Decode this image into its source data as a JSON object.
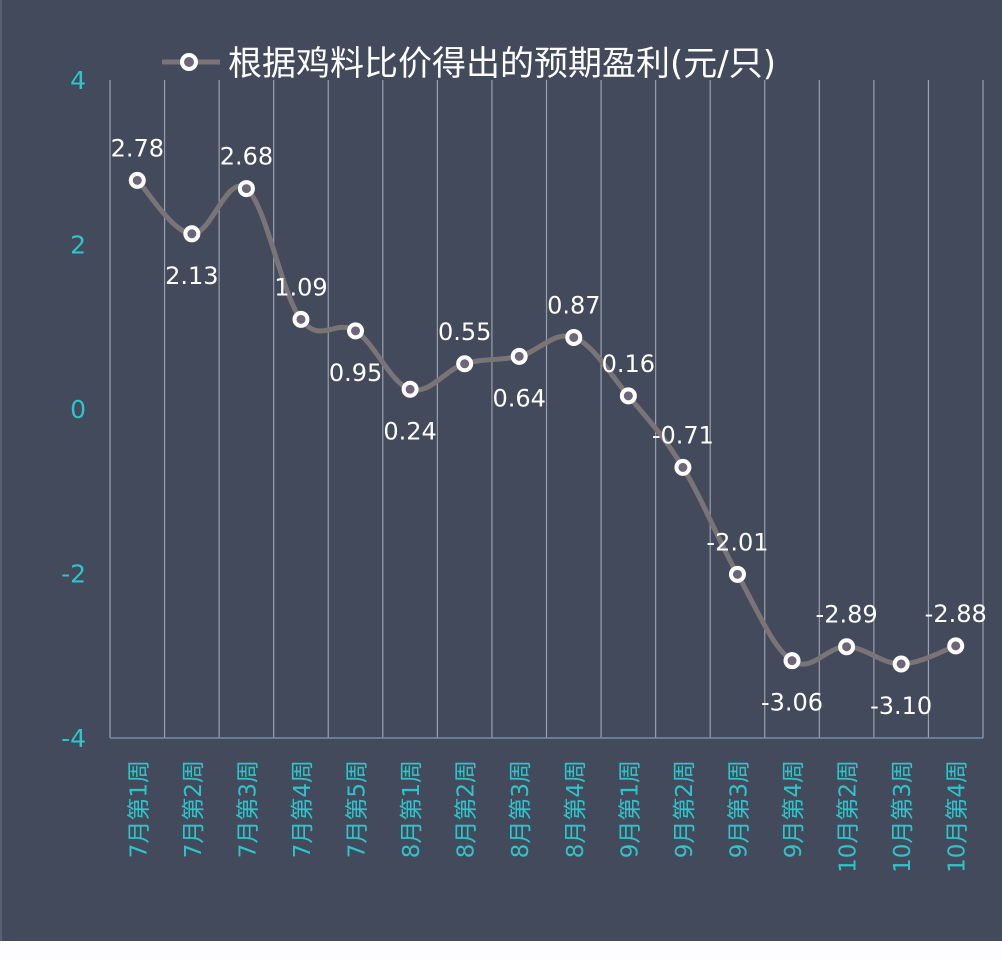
{
  "chart_data": {
    "type": "line",
    "title": "根据鸡料比价得出的预期盈利(元/只)",
    "legend": [
      {
        "name": "根据鸡料比价得出的预期盈利(元/只)",
        "position": "top"
      }
    ],
    "xlabel": "",
    "ylabel": "",
    "ylim": [
      -4,
      4
    ],
    "yticks": [
      "4",
      "2",
      "0",
      "-2",
      "-4"
    ],
    "grid": {
      "vertical": true,
      "horizontal": false
    },
    "smooth": true,
    "categories": [
      "7月第1周",
      "7月第2周",
      "7月第3周",
      "7月第4周",
      "7月第5周",
      "8月第1周",
      "8月第2周",
      "8月第3周",
      "8月第4周",
      "9月第1周",
      "9月第2周",
      "9月第3周",
      "9月第4周",
      "10月第2周",
      "10月第3周",
      "10月第4周"
    ],
    "series": [
      {
        "name": "根据鸡料比价得出的预期盈利(元/只)",
        "values": [
          2.78,
          2.13,
          2.68,
          1.09,
          0.95,
          0.24,
          0.55,
          0.64,
          0.87,
          0.16,
          -0.71,
          -2.01,
          -3.06,
          -2.89,
          -3.1,
          -2.88
        ],
        "labels": [
          "2.78",
          "2.13",
          "2.68",
          "1.09",
          "0.95",
          "0.24",
          "0.55",
          "0.64",
          "0.87",
          "0.16",
          "-0.71",
          "-2.01",
          "-3.06",
          "-2.89",
          "-3.10",
          "-2.88"
        ],
        "label_positions": [
          "above",
          "below",
          "above",
          "above",
          "below",
          "below",
          "above",
          "below",
          "above",
          "above",
          "above",
          "above",
          "below",
          "above",
          "below",
          "above"
        ]
      }
    ],
    "colors": {
      "background": "#434a5c",
      "line": "#7b7477",
      "marker_ring": "#ffffff",
      "marker_fill": "#6e6678",
      "axis_text": "#2ec4c9",
      "data_label": "#ffffff",
      "gridline": "#9aa0ad"
    }
  }
}
